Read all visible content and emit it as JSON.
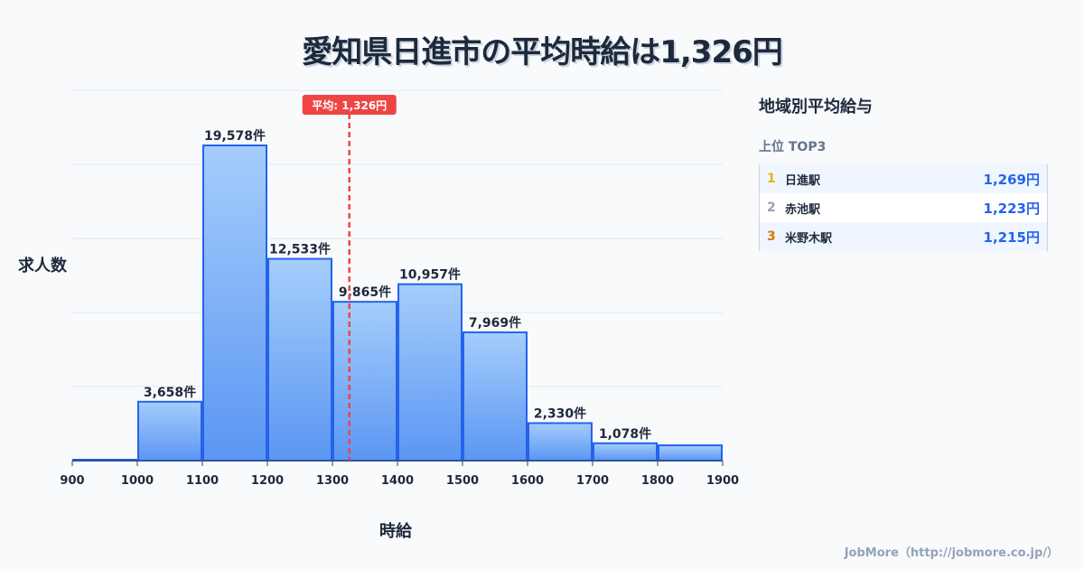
{
  "title": "愛知県日進市の平均時給は1,326円",
  "chart_data": {
    "type": "bar",
    "title": "愛知県日進市の平均時給は1,326円",
    "xlabel": "時給",
    "ylabel": "求人数",
    "bin_edges": [
      900,
      1000,
      1100,
      1200,
      1300,
      1400,
      1500,
      1600,
      1700,
      1800,
      1900
    ],
    "values": [
      0,
      3658,
      19578,
      12533,
      9865,
      10957,
      7969,
      2330,
      1078,
      950
    ],
    "labels": [
      "",
      "3,658件",
      "19,578件",
      "12,533件",
      "9,865件",
      "10,957件",
      "7,969件",
      "2,330件",
      "1,078件",
      ""
    ],
    "xlim": [
      900,
      1900
    ],
    "ylim": [
      0,
      23000
    ],
    "mean": 1326,
    "mean_label": "平均: 1,326円",
    "colors": {
      "bar_top": "#a5cdfb",
      "bar_bottom": "#5b96f3",
      "bar_edge": "#2563eb",
      "mean": "#ef4444"
    }
  },
  "panel": {
    "title": "地域別平均給与",
    "subtitle": "上位 TOP3",
    "rows": [
      {
        "rank": "1",
        "name": "日進駅",
        "value": "1,269円",
        "color": "#eab308"
      },
      {
        "rank": "2",
        "name": "赤池駅",
        "value": "1,223円",
        "color": "#94a3b8"
      },
      {
        "rank": "3",
        "name": "米野木駅",
        "value": "1,215円",
        "color": "#d97706"
      }
    ]
  },
  "footer": "JobMore（http://jobmore.co.jp/）"
}
